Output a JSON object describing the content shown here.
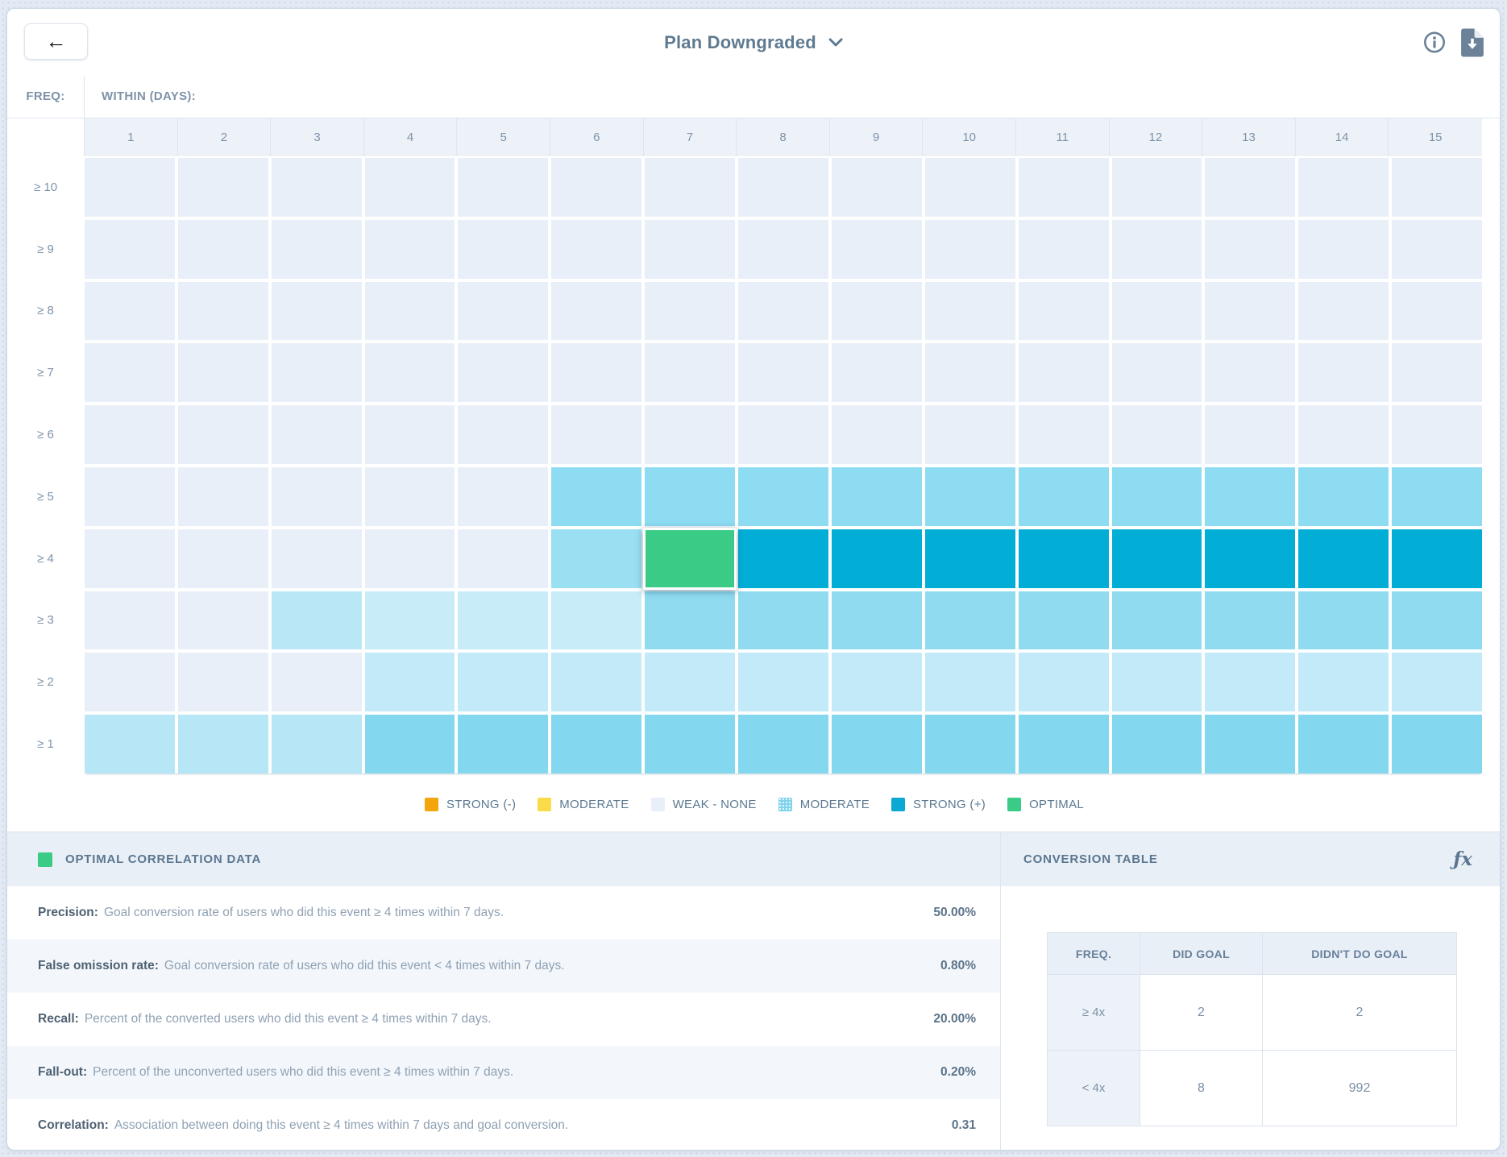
{
  "header": {
    "back_icon": "←",
    "title": "Plan Downgraded"
  },
  "grid": {
    "freq_label": "FREQ:",
    "within_label": "WITHIN (DAYS):",
    "columns": [
      "1",
      "2",
      "3",
      "4",
      "5",
      "6",
      "7",
      "8",
      "9",
      "10",
      "11",
      "12",
      "13",
      "14",
      "15"
    ],
    "row_labels": [
      "≥ 10",
      "≥ 9",
      "≥ 8",
      "≥ 7",
      "≥ 6",
      "≥ 5",
      "≥ 4",
      "≥ 3",
      "≥ 2",
      "≥ 1"
    ]
  },
  "chart_data": {
    "type": "heatmap",
    "title": "Event frequency vs. days correlation matrix",
    "xlabel": "WITHIN (DAYS):",
    "ylabel": "FREQ:",
    "x": [
      "1",
      "2",
      "3",
      "4",
      "5",
      "6",
      "7",
      "8",
      "9",
      "10",
      "11",
      "12",
      "13",
      "14",
      "15"
    ],
    "y": [
      "≥ 10",
      "≥ 9",
      "≥ 8",
      "≥ 7",
      "≥ 6",
      "≥ 5",
      "≥ 4",
      "≥ 3",
      "≥ 2",
      "≥ 1"
    ],
    "cell_keys_legend": "w=weak-none, p1-p4=weak/moderate pale blues, m1-m4=moderate blues, s=strong positive, o=optimal (selected)",
    "cells": [
      "w w w w w w w w w w w w w w w",
      "w w w w w w w w w w w w w w w",
      "w w w w w w w w w w w w w w w",
      "w w w w w w w w w w w w w w w",
      "w w w w w w w w w w w w w w w",
      "w w w w w m1 m1 m1 m1 m1 m1 m1 m1 m1 m1",
      "w w w w w m2 o s s s s s s s s",
      "w w p3 p1 p1 p1 m3 m3 m3 m3 m3 m3 m3 m3 m3",
      "w w w p2 p2 p2 p2 p2 p2 p2 p2 p2 p2 p2 p2",
      "p4 p4 p4 m4 m4 m4 m4 m4 m4 m4 m4 m4 m4 m4 m4"
    ],
    "optimal_cell": {
      "freq": "≥ 4",
      "day": "7"
    }
  },
  "colors": {
    "w": "#e9eff8",
    "p1": "#c8ecf8",
    "p2": "#c3eaf8",
    "p3": "#b9e7f6",
    "p4": "#b7e6f6",
    "m1": "#8edcf1",
    "m2": "#9adff2",
    "m3": "#90dbf0",
    "m4": "#83d7ee",
    "s": "#03aed6",
    "o": "#3acc86",
    "strong_negative": "#f3a60c",
    "moderate_yellow": "#fadc4b",
    "strong_positive": "#0aa9d3",
    "optimal_green": "#3acc86",
    "icon_slate": "#6b8299"
  },
  "legend": {
    "items": [
      {
        "label": "STRONG (-)",
        "color": "#f3a60c",
        "textured": false
      },
      {
        "label": "MODERATE",
        "color": "#fadc4b",
        "textured": false
      },
      {
        "label": "WEAK - NONE",
        "color": "#e9eff8",
        "textured": false
      },
      {
        "label": "MODERATE",
        "color": "#7fd2ec",
        "textured": true
      },
      {
        "label": "STRONG (+)",
        "color": "#0aa9d3",
        "textured": false
      },
      {
        "label": "OPTIMAL",
        "color": "#3acc86",
        "textured": false
      }
    ]
  },
  "optimal_panel": {
    "title": "OPTIMAL CORRELATION DATA",
    "metrics": [
      {
        "name": "Precision:",
        "desc": "Goal conversion rate of users who did this event ≥ 4 times within 7 days.",
        "value": "50.00%"
      },
      {
        "name": "False omission rate:",
        "desc": "Goal conversion rate of users who did this event < 4 times within 7 days.",
        "value": "0.80%"
      },
      {
        "name": "Recall:",
        "desc": "Percent of the converted users who did this event ≥ 4 times within 7 days.",
        "value": "20.00%"
      },
      {
        "name": "Fall-out:",
        "desc": "Percent of the unconverted users who did this event ≥ 4 times within 7 days.",
        "value": "0.20%"
      },
      {
        "name": "Correlation:",
        "desc": "Association between doing this event ≥ 4 times within 7 days and goal conversion.",
        "value": "0.31"
      }
    ]
  },
  "conversion_panel": {
    "title": "CONVERSION TABLE",
    "fx_label": "ƒx",
    "table": {
      "headers": [
        "FREQ.",
        "DID GOAL",
        "DIDN'T DO GOAL"
      ],
      "rows": [
        {
          "freq": "≥ 4x",
          "did": "2",
          "didnt": "2"
        },
        {
          "freq": "< 4x",
          "did": "8",
          "didnt": "992"
        }
      ]
    }
  }
}
